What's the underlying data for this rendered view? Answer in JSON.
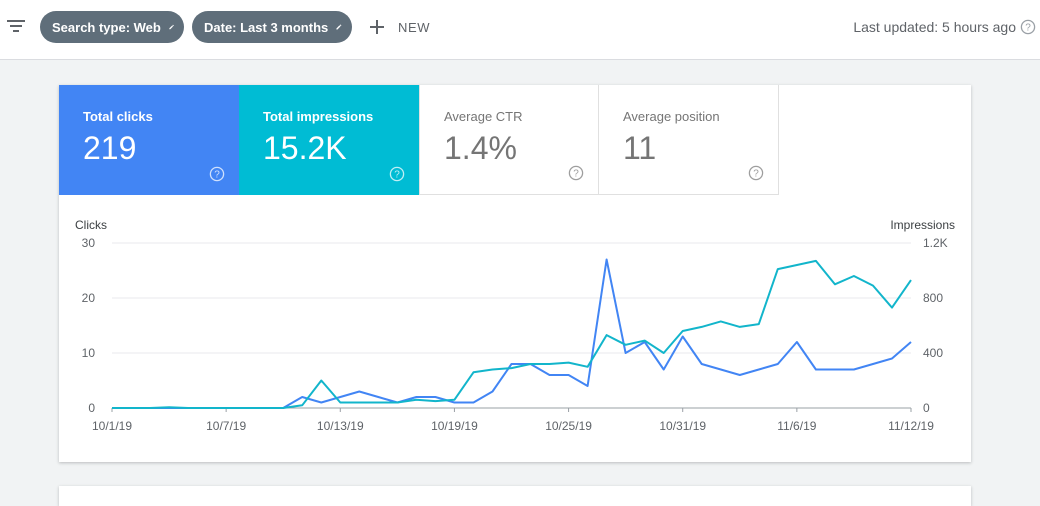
{
  "toolbar": {
    "filter_icon": "filter-list-icon",
    "chips": [
      {
        "label": "Search type: Web",
        "icon": "edit-pencil-icon"
      },
      {
        "label": "Date: Last 3 months",
        "icon": "edit-pencil-icon"
      }
    ],
    "new_label": "NEW",
    "last_updated": "Last updated: 5 hours ago",
    "help_icon": "help-icon"
  },
  "metrics": [
    {
      "label": "Total clicks",
      "value": "219",
      "color": "#4285f4",
      "active": true
    },
    {
      "label": "Total impressions",
      "value": "15.2K",
      "color": "#00bcd4",
      "active": true
    },
    {
      "label": "Average CTR",
      "value": "1.4%",
      "active": false
    },
    {
      "label": "Average position",
      "value": "11",
      "active": false
    }
  ],
  "chart_data": {
    "type": "line",
    "xlabel": "",
    "y_left_label": "Clicks",
    "y_right_label": "Impressions",
    "y_left_ticks": [
      "0",
      "10",
      "20",
      "30"
    ],
    "y_right_ticks": [
      "0",
      "400",
      "800",
      "1.2K"
    ],
    "y_left_lim": [
      0,
      30
    ],
    "y_right_lim": [
      0,
      1200
    ],
    "x_tick_labels": [
      "10/1/19",
      "10/7/19",
      "10/13/19",
      "10/19/19",
      "10/25/19",
      "10/31/19",
      "11/6/19",
      "11/12/19"
    ],
    "grid": true,
    "series": [
      {
        "name": "Clicks",
        "axis": "left",
        "color": "#4285f4",
        "x": [
          "10/1/19",
          "10/2/19",
          "10/3/19",
          "10/4/19",
          "10/5/19",
          "10/6/19",
          "10/7/19",
          "10/8/19",
          "10/9/19",
          "10/10/19",
          "10/11/19",
          "10/12/19",
          "10/13/19",
          "10/14/19",
          "10/15/19",
          "10/16/19",
          "10/17/19",
          "10/18/19",
          "10/19/19",
          "10/20/19",
          "10/21/19",
          "10/22/19",
          "10/23/19",
          "10/24/19",
          "10/25/19",
          "10/26/19",
          "10/27/19",
          "10/28/19",
          "10/29/19",
          "10/30/19",
          "10/31/19",
          "11/1/19",
          "11/2/19",
          "11/3/19",
          "11/4/19",
          "11/5/19",
          "11/6/19",
          "11/7/19",
          "11/8/19",
          "11/9/19",
          "11/10/19",
          "11/11/19",
          "11/12/19"
        ],
        "values": [
          0,
          0,
          0,
          0,
          0,
          0,
          0,
          0,
          0,
          0,
          2,
          1,
          2,
          3,
          2,
          1,
          2,
          2,
          1,
          1,
          3,
          8,
          8,
          6,
          6,
          4,
          27,
          10,
          12,
          7,
          13,
          8,
          7,
          6,
          7,
          8,
          12,
          7,
          7,
          7,
          8,
          9,
          12
        ]
      },
      {
        "name": "Impressions",
        "axis": "right",
        "color": "#12b5cb",
        "x": [
          "10/1/19",
          "10/2/19",
          "10/3/19",
          "10/4/19",
          "10/5/19",
          "10/6/19",
          "10/7/19",
          "10/8/19",
          "10/9/19",
          "10/10/19",
          "10/11/19",
          "10/12/19",
          "10/13/19",
          "10/14/19",
          "10/15/19",
          "10/16/19",
          "10/17/19",
          "10/18/19",
          "10/19/19",
          "10/20/19",
          "10/21/19",
          "10/22/19",
          "10/23/19",
          "10/24/19",
          "10/25/19",
          "10/26/19",
          "10/27/19",
          "10/28/19",
          "10/29/19",
          "10/30/19",
          "10/31/19",
          "11/1/19",
          "11/2/19",
          "11/3/19",
          "11/4/19",
          "11/5/19",
          "11/6/19",
          "11/7/19",
          "11/8/19",
          "11/9/19",
          "11/10/19",
          "11/11/19",
          "11/12/19"
        ],
        "values": [
          0,
          0,
          0,
          5,
          0,
          0,
          0,
          0,
          0,
          0,
          20,
          200,
          40,
          40,
          40,
          40,
          60,
          50,
          60,
          260,
          280,
          290,
          320,
          320,
          330,
          300,
          530,
          460,
          490,
          400,
          560,
          590,
          630,
          590,
          610,
          1010,
          1040,
          1070,
          900,
          960,
          890,
          730,
          930
        ]
      }
    ]
  }
}
